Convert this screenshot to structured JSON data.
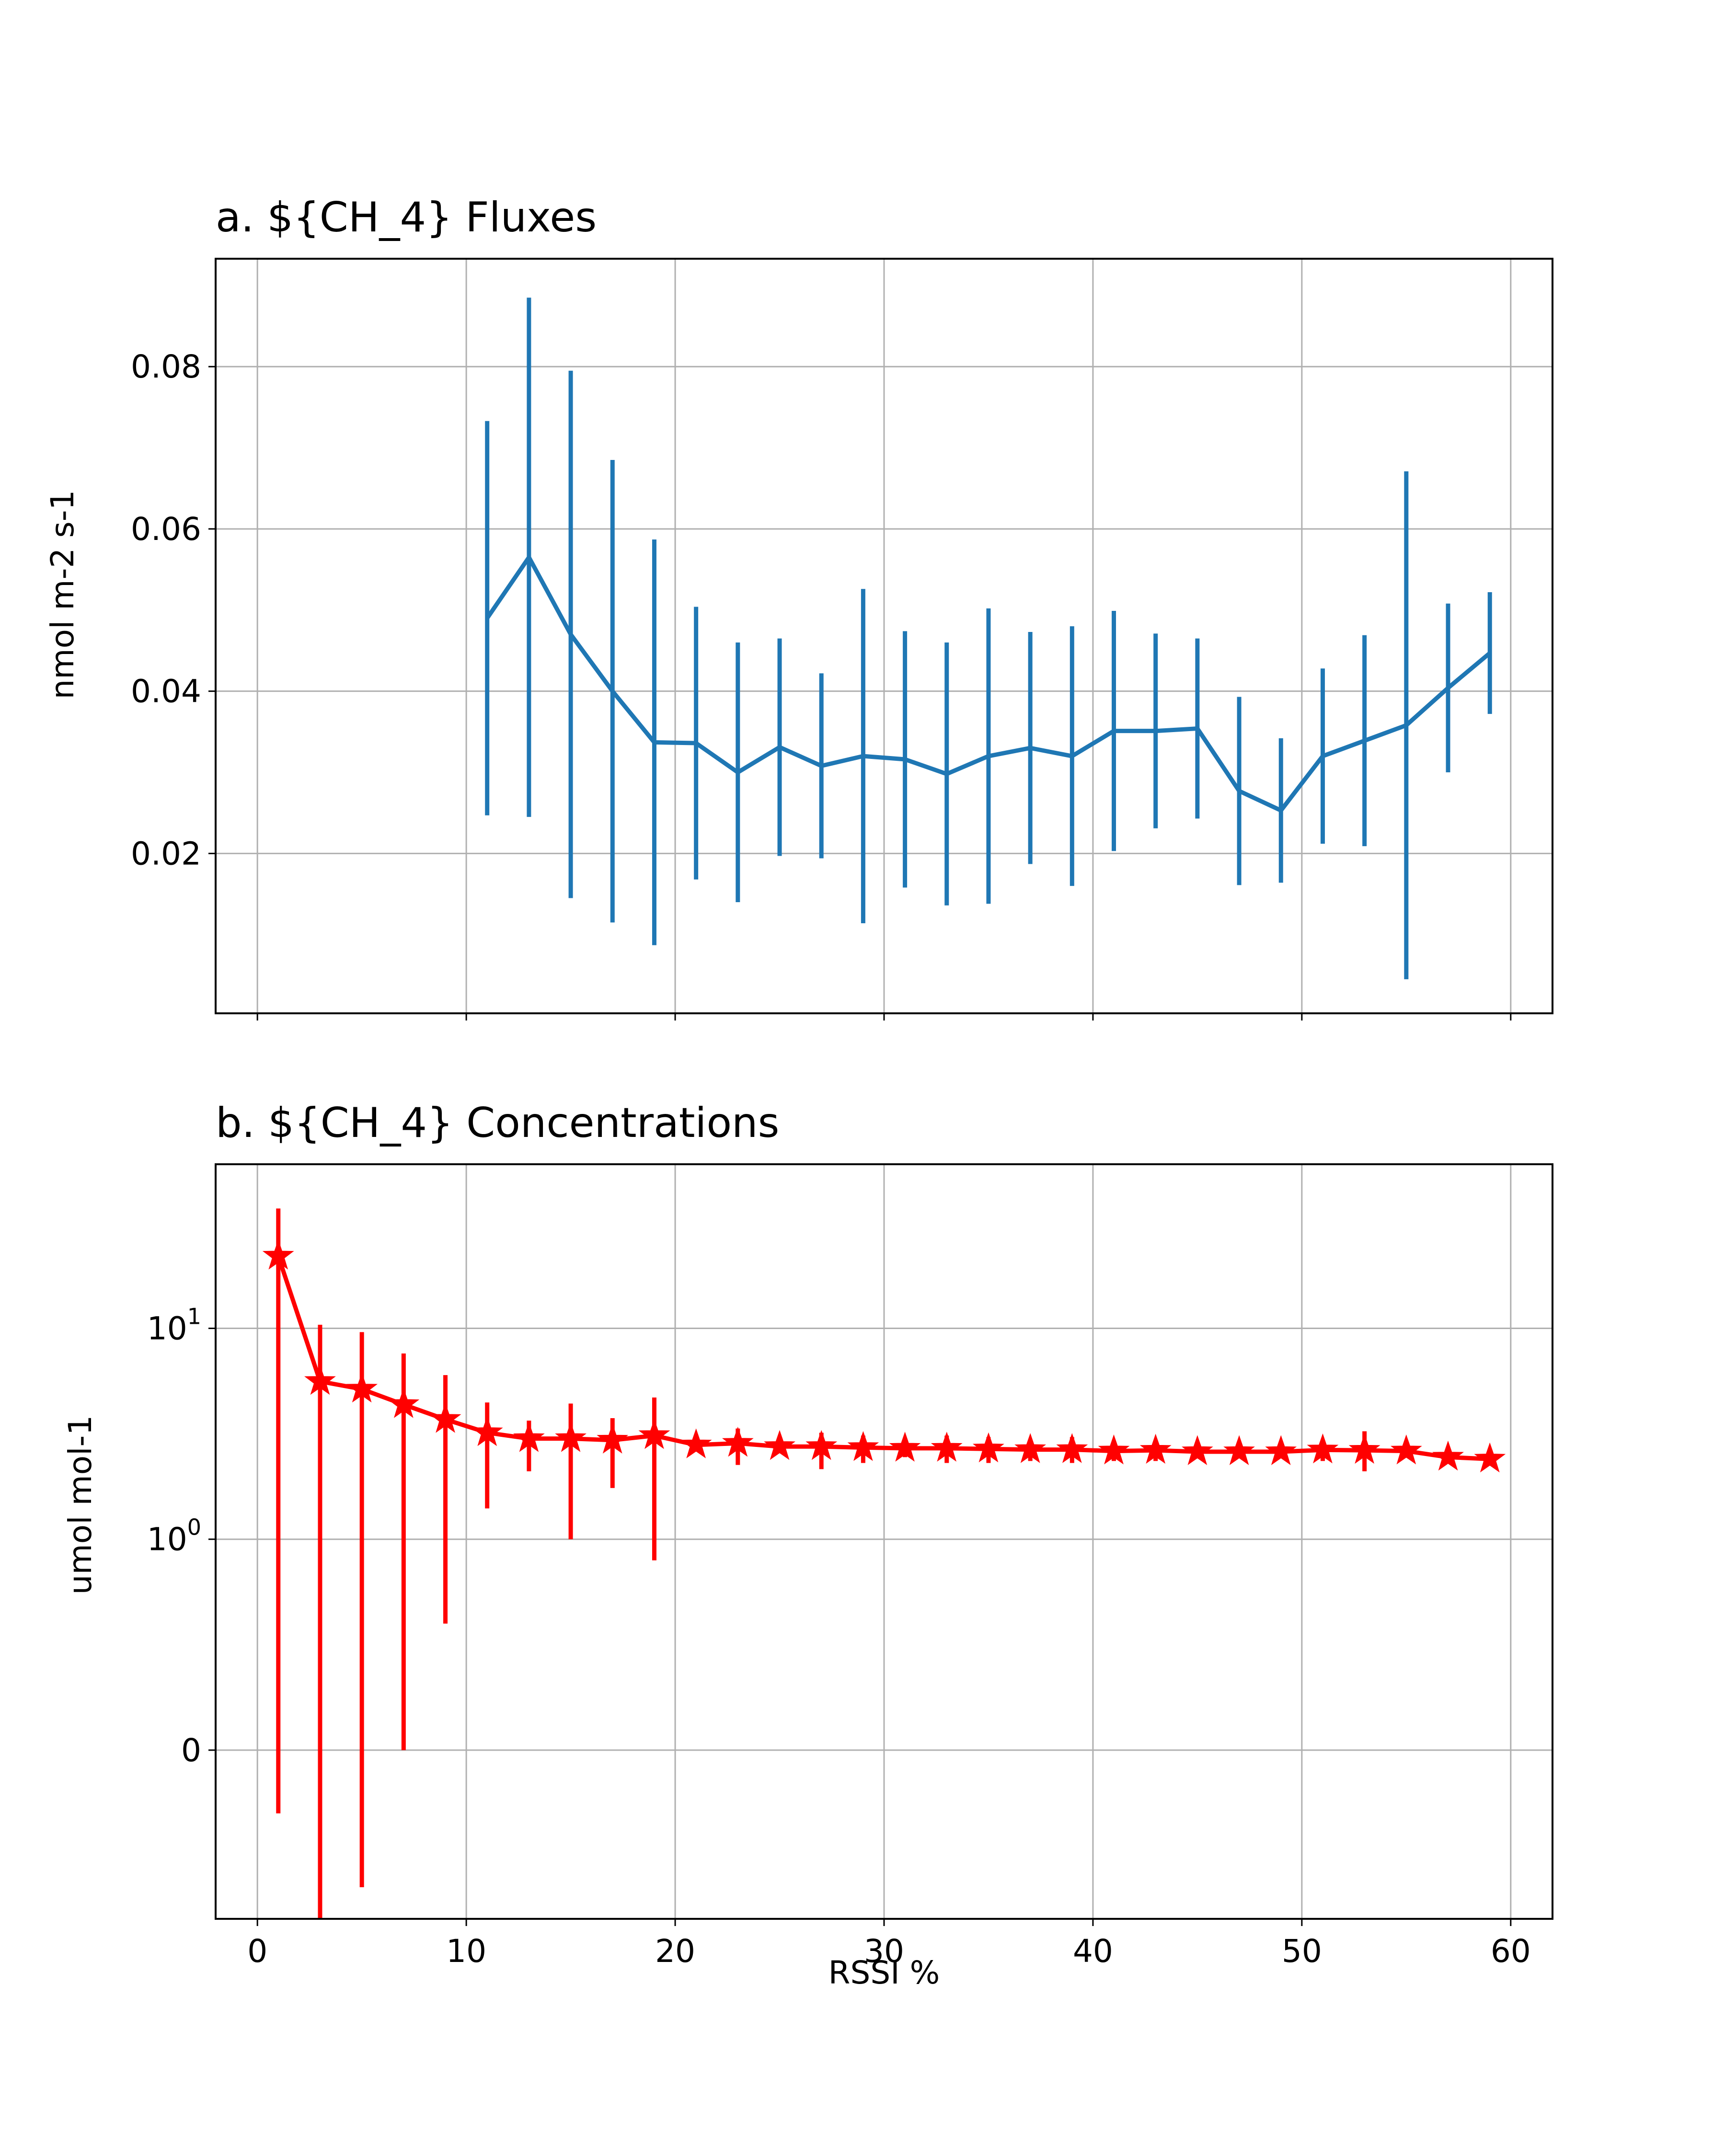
{
  "chart_data": [
    {
      "type": "line",
      "title": "a. ${CH_4} Fluxes",
      "xlabel": "",
      "ylabel": "nmol m-2 s-1",
      "xlim": [
        -2,
        62
      ],
      "ylim": [
        0.0003,
        0.0933
      ],
      "xticks": [
        0,
        10,
        20,
        30,
        40,
        50,
        60
      ],
      "yticks": [
        0.02,
        0.04,
        0.06,
        0.08
      ],
      "ytick_labels": [
        "0.02",
        "0.04",
        "0.06",
        "0.08"
      ],
      "grid": true,
      "color": "#1f77b4",
      "x": [
        11,
        13,
        15,
        17,
        19,
        21,
        23,
        25,
        27,
        29,
        31,
        33,
        35,
        37,
        39,
        41,
        43,
        45,
        47,
        49,
        51,
        53,
        55,
        57,
        59
      ],
      "y": [
        0.049,
        0.0565,
        0.047,
        0.04,
        0.0337,
        0.0336,
        0.03,
        0.0331,
        0.0308,
        0.032,
        0.0316,
        0.0298,
        0.032,
        0.033,
        0.032,
        0.0351,
        0.0351,
        0.0354,
        0.0277,
        0.0253,
        0.032,
        0.0339,
        0.0358,
        0.0404,
        0.0447
      ],
      "yerr": [
        0.0243,
        0.032,
        0.0325,
        0.0285,
        0.025,
        0.0168,
        0.016,
        0.0134,
        0.0114,
        0.0206,
        0.0158,
        0.0162,
        0.0182,
        0.0143,
        0.016,
        0.0148,
        0.012,
        0.0111,
        0.0116,
        0.0089,
        0.0108,
        0.013,
        0.0313,
        0.0104,
        0.0075
      ]
    },
    {
      "type": "line",
      "title": "b. ${CH_4} Concentrations",
      "xlabel": "RSSI %",
      "ylabel": "umol mol-1",
      "yscale": "symlog",
      "xlim": [
        -2,
        62
      ],
      "ylim": [
        -0.8,
        60
      ],
      "xticks": [
        0,
        10,
        20,
        30,
        40,
        50,
        60
      ],
      "yticks": [
        0,
        1,
        10
      ],
      "ytick_labels": [
        {
          "base": "0",
          "exp": ""
        },
        {
          "base": "10",
          "exp": "0"
        },
        {
          "base": "10",
          "exp": "1"
        }
      ],
      "grid": true,
      "color": "#ff0000",
      "marker": "star",
      "x": [
        1,
        3,
        5,
        7,
        9,
        11,
        13,
        15,
        17,
        19,
        21,
        23,
        25,
        27,
        29,
        31,
        33,
        35,
        37,
        39,
        41,
        43,
        45,
        47,
        49,
        51,
        53,
        55,
        57,
        59
      ],
      "y": [
        22,
        5.6,
        5.15,
        4.35,
        3.7,
        3.2,
        3.0,
        3.0,
        2.95,
        3.1,
        2.8,
        2.85,
        2.75,
        2.75,
        2.72,
        2.7,
        2.7,
        2.68,
        2.66,
        2.66,
        2.62,
        2.64,
        2.6,
        2.6,
        2.6,
        2.65,
        2.64,
        2.62,
        2.45,
        2.4
      ],
      "y_low": [
        -0.3,
        -0.8,
        -0.65,
        0.0,
        0.6,
        1.4,
        2.1,
        1.0,
        1.75,
        0.9,
        2.6,
        2.25,
        2.6,
        2.15,
        2.3,
        2.45,
        2.3,
        2.3,
        2.35,
        2.3,
        2.35,
        2.35,
        2.45,
        2.45,
        2.45,
        2.35,
        2.1,
        2.45,
        2.4,
        2.3
      ],
      "y_high": [
        37,
        10.4,
        9.6,
        7.6,
        6.0,
        4.45,
        3.65,
        4.4,
        3.75,
        4.7,
        3.0,
        3.35,
        2.9,
        3.2,
        3.1,
        2.95,
        3.1,
        3.05,
        2.95,
        3.05,
        2.9,
        2.95,
        2.8,
        2.8,
        2.8,
        2.95,
        3.25,
        2.85,
        2.55,
        2.5
      ]
    }
  ]
}
